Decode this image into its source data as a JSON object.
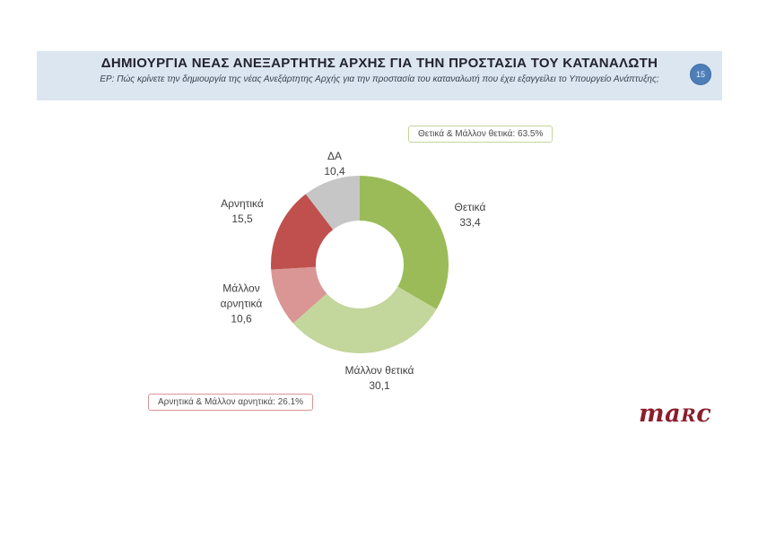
{
  "page": {
    "number": "15"
  },
  "header": {
    "title": "ΔΗΜΙΟΥΡΓΙΑ ΝΕΑΣ ΑΝΕΞΑΡΤΗΤΗΣ ΑΡΧΗΣ ΓΙΑ ΤΗΝ ΠΡΟΣΤΑΣΙΑ ΤΟΥ ΚΑΤΑΝΑΛΩΤΗ",
    "question": "ΕΡ: Πώς κρίνετε την δημιουργία της νέας Ανεξάρτητης Αρχής για την προστασία του καταναλωτή που έχει εξαγγείλει το Υπουργείο Ανάπτυξης;"
  },
  "chart_data": {
    "type": "pie",
    "subtype": "donut",
    "title": "ΔΗΜΙΟΥΡΓΙΑ ΝΕΑΣ ΑΝΕΞΑΡΤΗΤΗΣ ΑΡΧΗΣ ΓΙΑ ΤΗΝ ΠΡΟΣΤΑΣΙΑ ΤΟΥ ΚΑΤΑΝΑΛΩΤΗ",
    "categories": [
      "Θετικά",
      "Μάλλον θετικά",
      "Μάλλον αρνητικά",
      "Αρνητικά",
      "ΔΑ"
    ],
    "values": [
      33.4,
      30.1,
      10.6,
      15.5,
      10.4
    ],
    "colors": [
      "#9bbb59",
      "#c3d69b",
      "#d99694",
      "#c0504d",
      "#c6c6c6"
    ],
    "start_angle_deg": 0,
    "direction": "clockwise",
    "inner_radius_ratio": 0.495,
    "labels": [
      {
        "name": "Θετικά",
        "value": "33,4"
      },
      {
        "name": "Μάλλον θετικά",
        "value": "30,1"
      },
      {
        "name": "Μάλλον αρνητικά",
        "value": "10,6"
      },
      {
        "name": "Αρνητικά",
        "value": "15,5"
      },
      {
        "name": "ΔΑ",
        "value": "10,4"
      }
    ],
    "annotations": [
      "Θετικά & Μάλλον θετικά: 63.5%",
      "Αρνητικά & Μάλλον αρνητικά: 26.1%"
    ]
  },
  "logo": {
    "pre": "ma",
    "mid": "r",
    "post": "c"
  }
}
